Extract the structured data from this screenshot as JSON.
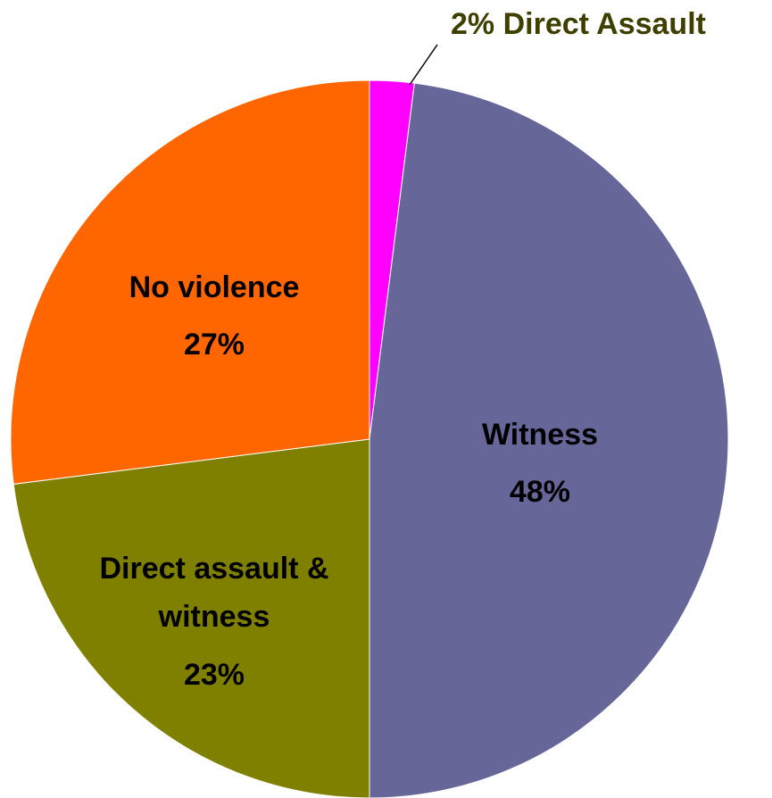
{
  "chart_data": {
    "type": "pie",
    "categories": [
      "Direct Assault",
      "Witness",
      "Direct assault & witness",
      "No violence"
    ],
    "values": [
      2,
      48,
      23,
      27
    ],
    "value_labels": [
      "2%",
      "48%",
      "23%",
      "27%"
    ],
    "colors": [
      "#ff00ff",
      "#666699",
      "#808000",
      "#ff6600"
    ]
  }
}
